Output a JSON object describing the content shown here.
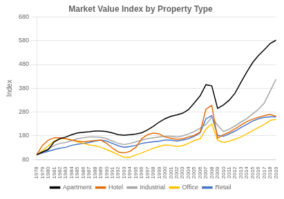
{
  "chart_data": {
    "type": "line",
    "title": "Market Value Index by Property Type",
    "ylabel": "Index",
    "categories": [
      "1978",
      "1979",
      "1980",
      "1981",
      "1982",
      "1983",
      "1984",
      "1985",
      "1986",
      "1987",
      "1988",
      "1989",
      "1990",
      "1991",
      "1992",
      "1993",
      "1994",
      "1995",
      "1996",
      "1997",
      "1998",
      "1999",
      "2000",
      "2001",
      "2002",
      "2003",
      "2004",
      "2005",
      "2006",
      "2007",
      "2008",
      "2009",
      "2010",
      "2011",
      "2012",
      "2013",
      "2014",
      "2015",
      "2016",
      "2017",
      "2018",
      "2019"
    ],
    "series": [
      {
        "name": "Apartment",
        "color": "#000000",
        "values": [
          100,
          112,
          122,
          155,
          168,
          175,
          185,
          192,
          195,
          197,
          200,
          200,
          198,
          192,
          185,
          183,
          185,
          188,
          193,
          205,
          220,
          238,
          252,
          262,
          268,
          275,
          290,
          318,
          348,
          395,
          390,
          295,
          310,
          330,
          360,
          405,
          448,
          488,
          518,
          542,
          568,
          582
        ]
      },
      {
        "name": "Hotel",
        "color": "#e36c09",
        "values": [
          100,
          140,
          162,
          172,
          172,
          168,
          162,
          158,
          155,
          158,
          160,
          162,
          148,
          128,
          112,
          108,
          115,
          132,
          168,
          185,
          192,
          188,
          175,
          170,
          165,
          168,
          175,
          182,
          195,
          292,
          308,
          170,
          185,
          195,
          210,
          225,
          240,
          250,
          258,
          265,
          270,
          262
        ]
      },
      {
        "name": "Industrial",
        "color": "#a5a5a5",
        "values": [
          100,
          112,
          125,
          140,
          148,
          152,
          160,
          168,
          172,
          175,
          175,
          174,
          168,
          158,
          148,
          143,
          148,
          155,
          162,
          168,
          172,
          175,
          178,
          178,
          175,
          180,
          188,
          198,
          212,
          228,
          258,
          225,
          198,
          208,
          222,
          238,
          252,
          272,
          292,
          318,
          368,
          418
        ]
      },
      {
        "name": "Office",
        "color": "#ffc000",
        "values": [
          100,
          118,
          138,
          158,
          168,
          168,
          162,
          155,
          148,
          142,
          138,
          132,
          122,
          112,
          100,
          90,
          90,
          100,
          108,
          118,
          128,
          135,
          142,
          140,
          135,
          138,
          148,
          160,
          168,
          208,
          230,
          162,
          152,
          158,
          166,
          175,
          188,
          202,
          215,
          228,
          245,
          250
        ]
      },
      {
        "name": "Retail",
        "color": "#4472c4",
        "values": [
          100,
          108,
          115,
          122,
          128,
          132,
          140,
          145,
          148,
          152,
          158,
          162,
          158,
          148,
          138,
          132,
          135,
          140,
          148,
          152,
          155,
          158,
          162,
          162,
          158,
          162,
          168,
          178,
          192,
          252,
          265,
          182,
          178,
          188,
          200,
          215,
          228,
          242,
          252,
          258,
          260,
          260
        ]
      }
    ],
    "ylim": [
      80,
      680
    ],
    "yticks": [
      80,
      180,
      280,
      380,
      480,
      580,
      680
    ],
    "grid": true,
    "legend": "bottom"
  }
}
